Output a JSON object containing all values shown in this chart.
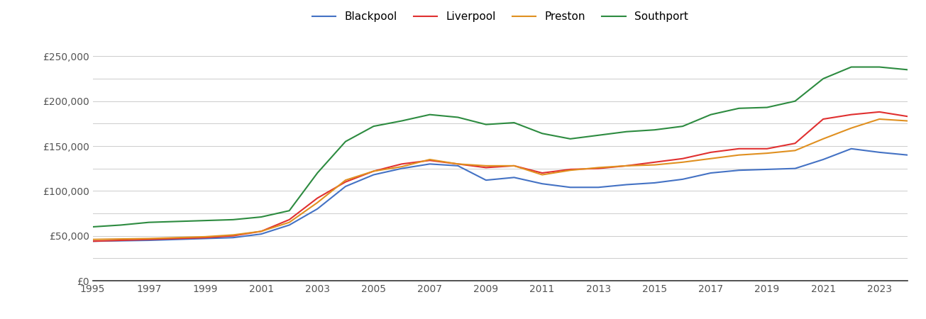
{
  "years": [
    1995,
    1996,
    1997,
    1998,
    1999,
    2000,
    2001,
    2002,
    2003,
    2004,
    2005,
    2006,
    2007,
    2008,
    2009,
    2010,
    2011,
    2012,
    2013,
    2014,
    2015,
    2016,
    2017,
    2018,
    2019,
    2020,
    2021,
    2022,
    2023,
    2024
  ],
  "blackpool": [
    44000,
    44500,
    45000,
    46000,
    47000,
    48000,
    52000,
    62000,
    80000,
    105000,
    118000,
    125000,
    130000,
    128000,
    112000,
    115000,
    108000,
    104000,
    104000,
    107000,
    109000,
    113000,
    120000,
    123000,
    124000,
    125000,
    135000,
    147000,
    143000,
    140000
  ],
  "liverpool": [
    44000,
    45000,
    46000,
    47000,
    48000,
    50000,
    55000,
    68000,
    92000,
    110000,
    122000,
    130000,
    134000,
    130000,
    126000,
    128000,
    120000,
    124000,
    125000,
    128000,
    132000,
    136000,
    143000,
    147000,
    147000,
    153000,
    180000,
    185000,
    188000,
    183000
  ],
  "preston": [
    46000,
    46500,
    47000,
    48000,
    49000,
    51000,
    55000,
    65000,
    87000,
    112000,
    122000,
    127000,
    135000,
    130000,
    128000,
    128000,
    118000,
    123000,
    126000,
    128000,
    129000,
    132000,
    136000,
    140000,
    142000,
    145000,
    158000,
    170000,
    180000,
    178000
  ],
  "southport": [
    60000,
    62000,
    65000,
    66000,
    67000,
    68000,
    71000,
    78000,
    120000,
    155000,
    172000,
    178000,
    185000,
    182000,
    174000,
    176000,
    164000,
    158000,
    162000,
    166000,
    168000,
    172000,
    185000,
    192000,
    193000,
    200000,
    225000,
    238000,
    238000,
    235000
  ],
  "colors": {
    "blackpool": "#4472c4",
    "liverpool": "#e03030",
    "preston": "#e09020",
    "southport": "#2d8b40"
  },
  "ylim": [
    0,
    270000
  ],
  "yticks": [
    0,
    50000,
    100000,
    150000,
    200000,
    250000
  ],
  "ytick_labels": [
    "£0",
    "£50,000",
    "£100,000",
    "£150,000",
    "£200,000",
    "£250,000"
  ],
  "extra_gridlines": [
    25000,
    75000,
    125000,
    175000,
    225000
  ],
  "background_color": "#ffffff",
  "grid_color": "#cccccc",
  "legend_labels": [
    "Blackpool",
    "Liverpool",
    "Preston",
    "Southport"
  ]
}
